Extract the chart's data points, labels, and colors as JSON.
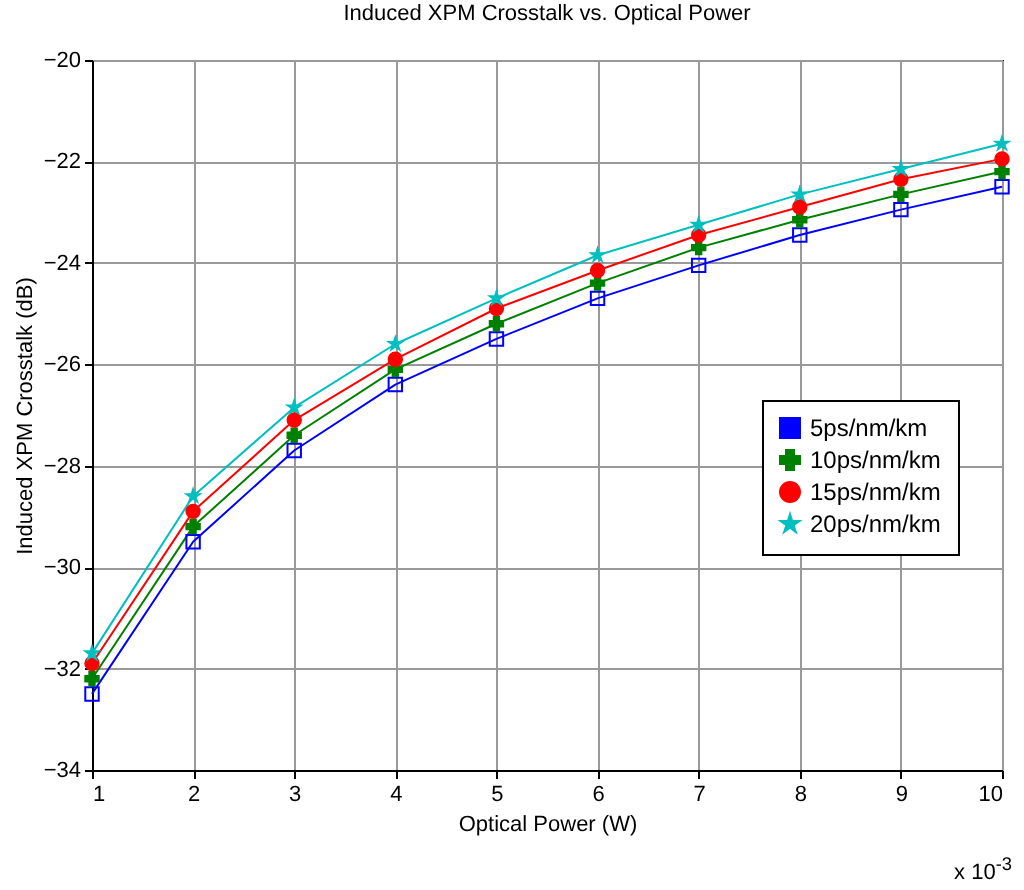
{
  "chart_data": {
    "type": "line",
    "title": "Induced XPM Crosstalk  vs. Optical Power",
    "xlabel": "Optical Power (W)",
    "ylabel": "Induced XPM Crosstalk (dB)",
    "annotations": [
      "x 10$^{-3}$"
    ],
    "x": [
      1,
      2,
      3,
      4,
      5,
      6,
      7,
      8,
      9,
      10
    ],
    "series": [
      {
        "name": "5ps/nm/km",
        "color": "#0000ff",
        "marker": "square",
        "values": [
          -32.5,
          -29.5,
          -27.7,
          -26.4,
          -25.5,
          -24.7,
          -24.05,
          -23.45,
          -22.95,
          -22.5
        ]
      },
      {
        "name": "10ps/nm/km",
        "color": "#008000",
        "marker": "cross",
        "values": [
          -32.2,
          -29.2,
          -27.4,
          -26.1,
          -25.2,
          -24.4,
          -23.7,
          -23.15,
          -22.65,
          -22.2
        ]
      },
      {
        "name": "15ps/nm/km",
        "color": "#ff0000",
        "marker": "circle",
        "values": [
          -31.9,
          -28.9,
          -27.1,
          -25.9,
          -24.9,
          -24.15,
          -23.45,
          -22.9,
          -22.35,
          -21.95
        ]
      },
      {
        "name": "20ps/nm/km",
        "color": "#00bfbf",
        "marker": "star",
        "values": [
          -31.7,
          -28.6,
          -26.85,
          -25.6,
          -24.7,
          -23.85,
          -23.25,
          -22.65,
          -22.15,
          -21.65
        ]
      }
    ],
    "xlim": [
      1,
      10
    ],
    "xticks": [
      1,
      2,
      3,
      4,
      5,
      6,
      7,
      8,
      9,
      10
    ],
    "ylim": [
      -34,
      -20
    ],
    "yticks": [
      -34,
      -32,
      -30,
      -28,
      -26,
      -24,
      -22,
      -20
    ],
    "grid": true,
    "legend": "right",
    "line_style": "solid"
  }
}
